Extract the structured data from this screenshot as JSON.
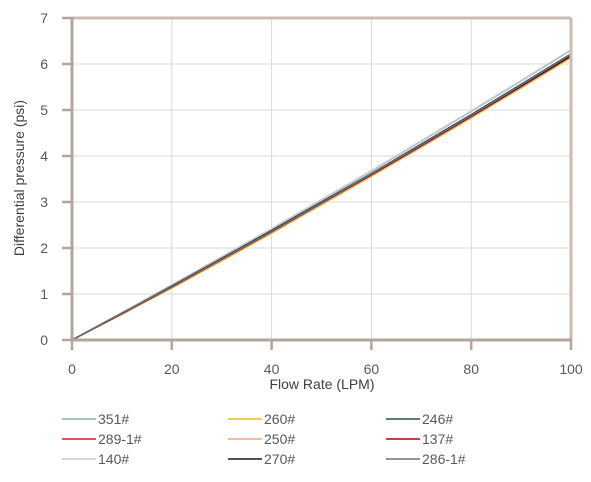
{
  "chart_data": {
    "type": "line",
    "xlabel": "Flow Rate (LPM)",
    "ylabel": "Differential pressure (psi)",
    "xlim": [
      0,
      100
    ],
    "ylim": [
      0,
      7
    ],
    "x_ticks": [
      "0",
      "20",
      "40",
      "60",
      "80",
      "100"
    ],
    "y_ticks": [
      "0",
      "1",
      "2",
      "3",
      "4",
      "5",
      "6",
      "7"
    ],
    "grid": true,
    "legend_position": "bottom",
    "x": [
      0,
      10,
      20,
      30,
      40,
      50,
      60,
      70,
      80,
      90,
      100
    ],
    "series": [
      {
        "name": "351#",
        "color": "#8fa9bf",
        "values": [
          0,
          0.59,
          1.19,
          1.8,
          2.41,
          3.04,
          3.67,
          4.32,
          4.97,
          5.63,
          6.3
        ]
      },
      {
        "name": "260#",
        "color": "#f2b824",
        "values": [
          0,
          0.56,
          1.13,
          1.72,
          2.32,
          2.94,
          3.56,
          4.19,
          4.83,
          5.48,
          6.14
        ]
      },
      {
        "name": "246#",
        "color": "#2e4a62",
        "values": [
          0,
          0.58,
          1.17,
          1.77,
          2.38,
          3.0,
          3.62,
          4.26,
          4.9,
          5.56,
          6.22
        ]
      },
      {
        "name": "289-1#",
        "color": "#d7191c",
        "values": [
          0,
          0.58,
          1.16,
          1.76,
          2.36,
          2.98,
          3.6,
          4.24,
          4.87,
          5.52,
          6.18
        ]
      },
      {
        "name": "250#",
        "color": "#f4a582",
        "values": [
          0,
          0.57,
          1.15,
          1.74,
          2.34,
          2.96,
          3.58,
          4.21,
          4.85,
          5.5,
          6.16
        ]
      },
      {
        "name": "137#",
        "color": "#9e0a0a",
        "values": [
          0,
          0.57,
          1.15,
          1.75,
          2.35,
          2.97,
          3.59,
          4.22,
          4.86,
          5.51,
          6.17
        ]
      },
      {
        "name": "140#",
        "color": "#c7c7c7",
        "values": [
          0,
          0.6,
          1.2,
          1.81,
          2.42,
          3.05,
          3.68,
          4.33,
          4.98,
          5.64,
          6.31
        ]
      },
      {
        "name": "270#",
        "color": "#1a1a1a",
        "values": [
          0,
          0.58,
          1.17,
          1.77,
          2.37,
          2.99,
          3.61,
          4.24,
          4.88,
          5.53,
          6.19
        ]
      },
      {
        "name": "286-1#",
        "color": "#6e6e6e",
        "values": [
          0,
          0.58,
          1.16,
          1.76,
          2.36,
          2.98,
          3.61,
          4.24,
          4.88,
          5.54,
          6.21
        ]
      }
    ]
  }
}
